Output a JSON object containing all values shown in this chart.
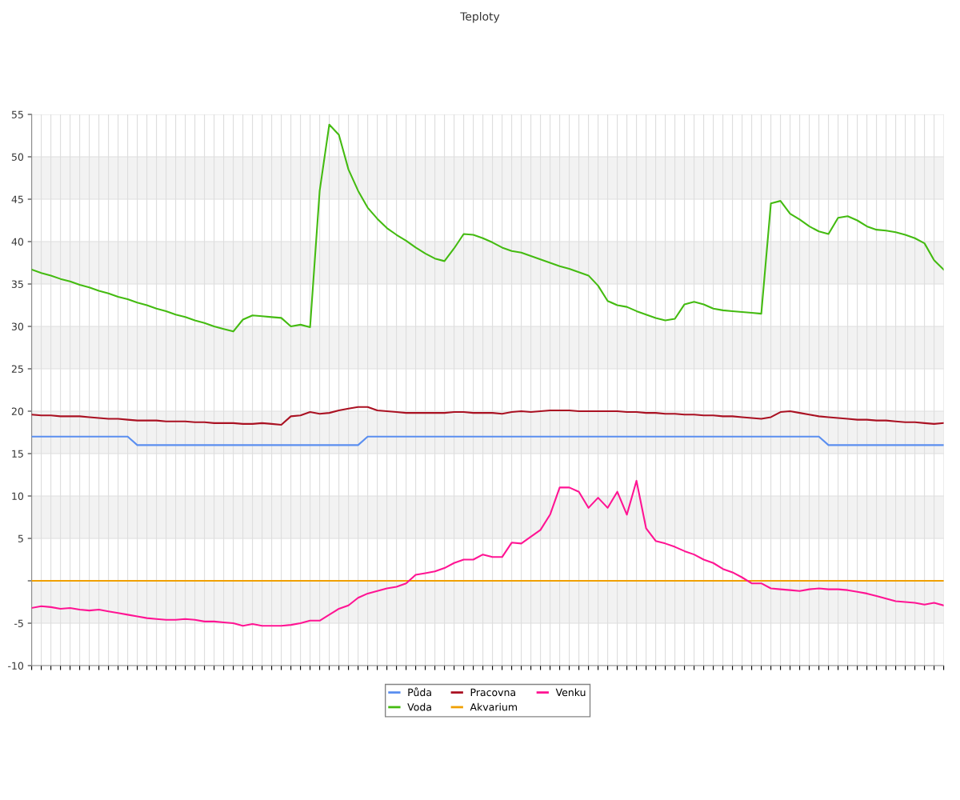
{
  "chart_data": {
    "type": "line",
    "title": "Teploty",
    "categories": [
      null,
      null,
      null,
      null,
      null,
      null,
      null,
      null,
      null,
      null,
      null,
      null,
      null,
      null,
      null,
      null,
      null,
      null,
      null,
      null,
      null,
      null,
      null,
      null,
      null,
      null,
      null,
      null,
      null,
      null,
      null,
      null,
      null,
      null,
      null,
      null,
      null,
      null,
      null,
      null,
      null,
      null,
      null,
      null,
      null,
      null,
      null,
      null,
      null,
      null,
      null,
      null,
      null,
      null,
      null,
      null,
      null,
      null,
      null,
      null,
      null,
      null,
      null,
      null,
      null,
      null,
      null,
      null,
      null,
      null,
      null,
      null,
      null,
      null,
      null,
      null,
      null,
      null,
      null,
      null,
      null,
      null,
      null,
      null,
      null,
      null,
      null,
      null,
      null,
      null,
      null,
      null,
      null,
      null,
      null,
      null
    ],
    "series": [
      {
        "name": "Půda",
        "color": "#5b8ff0",
        "values": [
          17,
          17,
          17,
          17,
          17,
          17,
          17,
          17,
          17,
          17,
          17,
          16,
          16,
          16,
          16,
          16,
          16,
          16,
          16,
          16,
          16,
          16,
          16,
          16,
          16,
          16,
          16,
          16,
          16,
          16,
          16,
          16,
          16,
          16,
          16,
          17,
          17,
          17,
          17,
          17,
          17,
          17,
          17,
          17,
          17,
          17,
          17,
          17,
          17,
          17,
          17,
          17,
          17,
          17,
          17,
          17,
          17,
          17,
          17,
          17,
          17,
          17,
          17,
          17,
          17,
          17,
          17,
          17,
          17,
          17,
          17,
          17,
          17,
          17,
          17,
          17,
          17,
          17,
          17,
          17,
          17,
          17,
          17,
          16,
          16,
          16,
          16,
          16,
          16,
          16,
          16,
          16,
          16,
          16,
          16,
          16
        ]
      },
      {
        "name": "Voda",
        "color": "#44bb11",
        "values": [
          36.7,
          36.3,
          36.0,
          35.6,
          35.3,
          34.9,
          34.6,
          34.2,
          33.9,
          33.5,
          33.2,
          32.8,
          32.5,
          32.1,
          31.8,
          31.4,
          31.1,
          30.7,
          30.4,
          30.0,
          29.7,
          29.4,
          30.8,
          31.3,
          31.2,
          31.1,
          31.0,
          30.0,
          30.2,
          29.9,
          46,
          53.8,
          52.6,
          48.5,
          46,
          44,
          42.7,
          41.6,
          40.8,
          40.1,
          39.3,
          38.6,
          38.0,
          37.7,
          39.2,
          40.9,
          40.8,
          40.4,
          39.9,
          39.3,
          38.9,
          38.7,
          38.3,
          37.9,
          37.5,
          37.1,
          36.8,
          36.4,
          36.0,
          34.8,
          33.0,
          32.5,
          32.3,
          31.8,
          31.4,
          31.0,
          30.7,
          30.9,
          32.6,
          32.9,
          32.6,
          32.1,
          31.9,
          31.8,
          31.7,
          31.6,
          31.5,
          44.5,
          44.8,
          43.3,
          42.6,
          41.8,
          41.2,
          40.9,
          42.8,
          43.0,
          42.5,
          41.8,
          41.4,
          41.3,
          41.1,
          40.8,
          40.4,
          39.8,
          37.8,
          36.7
        ]
      },
      {
        "name": "Pracovna",
        "color": "#aa1122",
        "values": [
          19.6,
          19.5,
          19.5,
          19.4,
          19.4,
          19.4,
          19.3,
          19.2,
          19.1,
          19.1,
          19.0,
          18.9,
          18.9,
          18.9,
          18.8,
          18.8,
          18.8,
          18.7,
          18.7,
          18.6,
          18.6,
          18.6,
          18.5,
          18.5,
          18.6,
          18.5,
          18.4,
          19.4,
          19.5,
          19.9,
          19.7,
          19.8,
          20.1,
          20.3,
          20.5,
          20.5,
          20.1,
          20.0,
          19.9,
          19.8,
          19.8,
          19.8,
          19.8,
          19.8,
          19.9,
          19.9,
          19.8,
          19.8,
          19.8,
          19.7,
          19.9,
          20.0,
          19.9,
          20.0,
          20.1,
          20.1,
          20.1,
          20.0,
          20.0,
          20.0,
          20.0,
          20.0,
          19.9,
          19.9,
          19.8,
          19.8,
          19.7,
          19.7,
          19.6,
          19.6,
          19.5,
          19.5,
          19.4,
          19.4,
          19.3,
          19.2,
          19.1,
          19.3,
          19.9,
          20.0,
          19.8,
          19.6,
          19.4,
          19.3,
          19.2,
          19.1,
          19.0,
          19.0,
          18.9,
          18.9,
          18.8,
          18.7,
          18.7,
          18.6,
          18.5,
          18.6
        ]
      },
      {
        "name": "Akvarium",
        "color": "#f0a000",
        "values": [
          0,
          0,
          0,
          0,
          0,
          0,
          0,
          0,
          0,
          0,
          0,
          0,
          0,
          0,
          0,
          0,
          0,
          0,
          0,
          0,
          0,
          0,
          0,
          0,
          0,
          0,
          0,
          0,
          0,
          0,
          0,
          0,
          0,
          0,
          0,
          0,
          0,
          0,
          0,
          0,
          0,
          0,
          0,
          0,
          0,
          0,
          0,
          0,
          0,
          0,
          0,
          0,
          0,
          0,
          0,
          0,
          0,
          0,
          0,
          0,
          0,
          0,
          0,
          0,
          0,
          0,
          0,
          0,
          0,
          0,
          0,
          0,
          0,
          0,
          0,
          0,
          0,
          0,
          0,
          0,
          0,
          0,
          0,
          0,
          0,
          0,
          0,
          0,
          0,
          0,
          0,
          0,
          0,
          0,
          0,
          0
        ]
      },
      {
        "name": "Venku",
        "color": "#ff1493",
        "values": [
          -3.2,
          -3.0,
          -3.1,
          -3.3,
          -3.2,
          -3.4,
          -3.5,
          -3.4,
          -3.6,
          -3.8,
          -4.0,
          -4.2,
          -4.4,
          -4.5,
          -4.6,
          -4.6,
          -4.5,
          -4.6,
          -4.8,
          -4.8,
          -4.9,
          -5.0,
          -5.3,
          -5.1,
          -5.3,
          -5.3,
          -5.3,
          -5.2,
          -5.0,
          -4.7,
          -4.7,
          -4.0,
          -3.3,
          -2.9,
          -2.0,
          -1.5,
          -1.2,
          -0.9,
          -0.7,
          -0.3,
          0.7,
          0.9,
          1.1,
          1.5,
          2.1,
          2.5,
          2.5,
          3.1,
          2.8,
          2.8,
          4.5,
          4.4,
          5.2,
          6.0,
          7.8,
          11.0,
          11.0,
          10.5,
          8.6,
          9.8,
          8.6,
          10.5,
          7.8,
          11.8,
          6.2,
          4.7,
          4.4,
          4.0,
          3.5,
          3.1,
          2.5,
          2.1,
          1.4,
          1.0,
          0.4,
          -0.3,
          -0.3,
          -0.9,
          -1.0,
          -1.1,
          -1.2,
          -1.0,
          -0.9,
          -1.0,
          -1.0,
          -1.1,
          -1.3,
          -1.5,
          -1.8,
          -2.1,
          -2.4,
          -2.5,
          -2.6,
          -2.8,
          -2.6,
          -2.9
        ]
      }
    ],
    "ylim": [
      -10,
      55
    ],
    "yticks": [
      -10,
      -5,
      {
        "value": 0,
        "label": null
      },
      5,
      10,
      15,
      20,
      25,
      30,
      35,
      40,
      45,
      50,
      55
    ],
    "bands": [
      {
        "axis": "y",
        "from": -5,
        "to": 0,
        "color": "#f2f2f2"
      },
      {
        "axis": "y",
        "from": 5,
        "to": 10,
        "color": "#f2f2f2"
      },
      {
        "axis": "y",
        "from": 15,
        "to": 20,
        "color": "#f2f2f2"
      },
      {
        "axis": "y",
        "from": 25,
        "to": 30,
        "color": "#f2f2f2"
      },
      {
        "axis": "y",
        "from": 35,
        "to": 40,
        "color": "#f2f2f2"
      },
      {
        "axis": "y",
        "from": 45,
        "to": 50,
        "color": "#f2f2f2"
      }
    ],
    "grid": true,
    "legend": "bottom",
    "tick_labels": "y",
    "marker": "none",
    "line_style": "solid"
  }
}
